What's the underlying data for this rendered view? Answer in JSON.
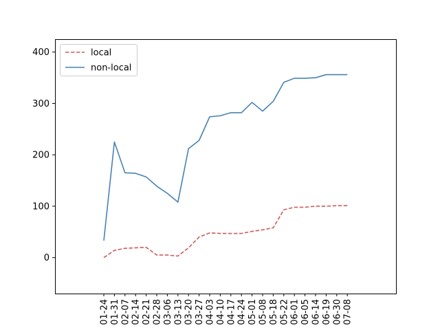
{
  "chart_data": {
    "type": "line",
    "title": "",
    "xlabel": "",
    "ylabel": "",
    "categories": [
      "01-24",
      "01-31",
      "02-07",
      "02-14",
      "02-21",
      "02-28",
      "03-06",
      "03-13",
      "03-20",
      "03-27",
      "04-03",
      "04-10",
      "04-17",
      "04-24",
      "05-01",
      "05-08",
      "05-18",
      "05-22",
      "06-01",
      "06-05",
      "06-14",
      "06-19",
      "06-30",
      "07-08"
    ],
    "ylim": [
      -70,
      425
    ],
    "yticks": [
      0,
      100,
      200,
      300,
      400
    ],
    "grid": false,
    "legend_position": "top-left",
    "series": [
      {
        "name": "local",
        "color": "#cd5c5c",
        "style": "dashed",
        "values": [
          0,
          14,
          18,
          19,
          20,
          5,
          5,
          3,
          19,
          40,
          48,
          47,
          47,
          47,
          51,
          54,
          58,
          93,
          98,
          98,
          100,
          100,
          101,
          101
        ]
      },
      {
        "name": "non-local",
        "color": "#4682b4",
        "style": "solid",
        "values": [
          33,
          225,
          165,
          164,
          157,
          139,
          125,
          108,
          212,
          228,
          274,
          276,
          282,
          282,
          302,
          285,
          304,
          341,
          349,
          349,
          350,
          356,
          356,
          356
        ]
      }
    ]
  }
}
